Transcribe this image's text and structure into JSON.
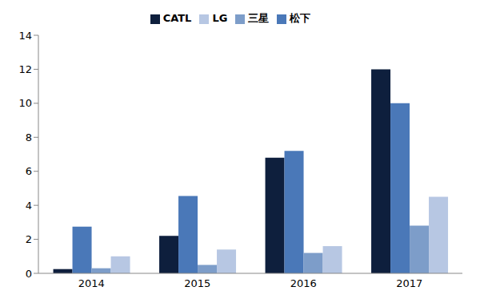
{
  "chart_data": {
    "type": "bar",
    "categories": [
      "2014",
      "2015",
      "2016",
      "2017"
    ],
    "series": [
      {
        "name": "CATL",
        "color": "#0e1f3d",
        "values": [
          0.25,
          2.2,
          6.8,
          12.0
        ]
      },
      {
        "name": "松下",
        "color": "#4a78b8",
        "values": [
          2.75,
          4.55,
          7.2,
          10.0
        ]
      },
      {
        "name": "三星",
        "color": "#7d9dc9",
        "values": [
          0.3,
          0.5,
          1.2,
          2.8
        ]
      },
      {
        "name": "LG",
        "color": "#b7c7e3",
        "values": [
          1.0,
          1.4,
          1.6,
          4.5
        ]
      }
    ],
    "ylim": [
      0,
      14
    ],
    "yticks": [
      0,
      2,
      4,
      6,
      8,
      10,
      12,
      14
    ],
    "grid": false,
    "legend": "top"
  }
}
